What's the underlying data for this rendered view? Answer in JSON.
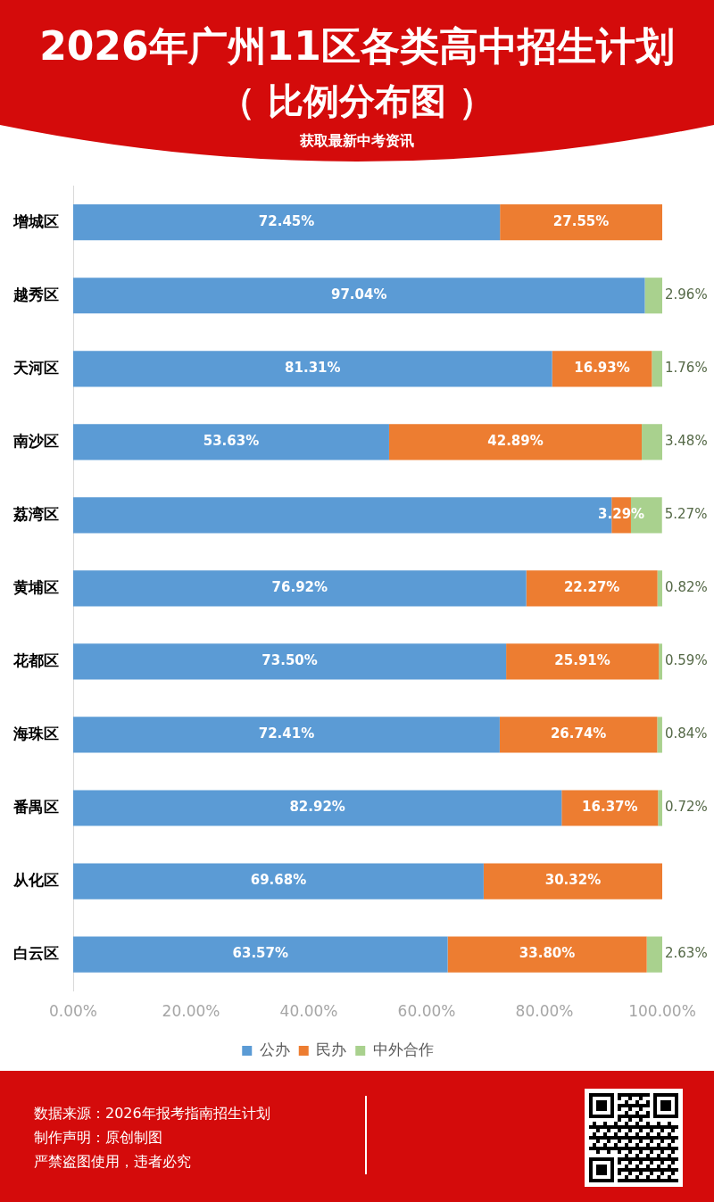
{
  "chart_data": {
    "type": "bar",
    "orientation": "horizontal",
    "stacked": true,
    "title": "2026年广州11区各类高中招生计划",
    "subtitle": "（ 比例分布图 ）",
    "annotations": [
      "获取最新中考资讯",
      "数据来源：2026年报考指南招生计划",
      "制作声明：原创制图",
      "严禁盗图使用，违者必究"
    ],
    "categories": [
      "增城区",
      "越秀区",
      "天河区",
      "南沙区",
      "荔湾区",
      "黄埔区",
      "花都区",
      "海珠区",
      "番禺区",
      "从化区",
      "白云区"
    ],
    "series": [
      {
        "name": "公办",
        "color": "#5b9bd5",
        "values": [
          72.45,
          97.04,
          81.31,
          53.63,
          91.4,
          76.92,
          73.5,
          72.41,
          82.92,
          69.68,
          63.57
        ],
        "value_labels": [
          "72.45%",
          "97.04%",
          "81.31%",
          "53.63%",
          null,
          "76.92%",
          "73.50%",
          "72.41%",
          "82.92%",
          "69.68%",
          "63.57%"
        ]
      },
      {
        "name": "民办",
        "color": "#ed7d31",
        "values": [
          27.55,
          null,
          16.93,
          42.89,
          3.29,
          22.27,
          25.91,
          26.74,
          16.37,
          30.32,
          33.8
        ],
        "value_labels": [
          "27.55%",
          null,
          "16.93%",
          "42.89%",
          "3.29%",
          "22.27%",
          "25.91%",
          "26.74%",
          "16.37%",
          "30.32%",
          "33.80%"
        ]
      },
      {
        "name": "中外合作",
        "color": "#a9d18e",
        "values": [
          null,
          2.96,
          1.76,
          3.48,
          5.27,
          0.82,
          0.59,
          0.84,
          0.72,
          null,
          2.63
        ],
        "value_labels": [
          null,
          "2.96%",
          "1.76%",
          "3.48%",
          "5.27%",
          "0.82%",
          "0.59%",
          "0.84%",
          "0.72%",
          null,
          "2.63%"
        ]
      }
    ],
    "xlim": [
      0,
      100
    ],
    "xticks": [
      {
        "value": 0,
        "label": "0.00%"
      },
      {
        "value": 20,
        "label": "20.00%"
      },
      {
        "value": 40,
        "label": "40.00%"
      },
      {
        "value": 60,
        "label": "60.00%"
      },
      {
        "value": 80,
        "label": "80.00%"
      },
      {
        "value": 100,
        "label": "100.00%"
      }
    ],
    "grid": false,
    "legend": "bottom"
  }
}
